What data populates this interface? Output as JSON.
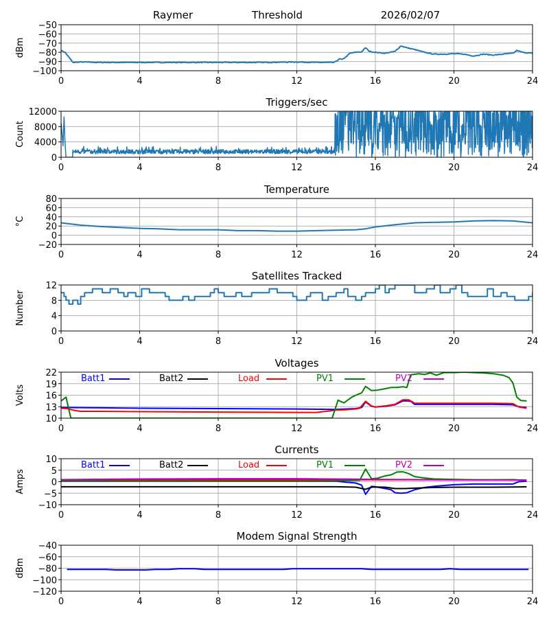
{
  "header": {
    "station": "Raymer",
    "mode": "Threshold",
    "date": "2026/02/07"
  },
  "chart_data": [
    {
      "id": "threshold",
      "type": "line",
      "title": "",
      "ylabel": "dBm",
      "xlim": [
        0,
        24
      ],
      "ylim": [
        -100,
        -50
      ],
      "xticks": [
        0,
        4,
        8,
        12,
        16,
        20,
        24
      ],
      "yticks": [
        -100,
        -90,
        -80,
        -70,
        -60,
        -50
      ],
      "grid": true,
      "series": [
        {
          "name": "Threshold",
          "color": "#1f77b4",
          "x": [
            0,
            0.2,
            0.35,
            0.6,
            1,
            2,
            4,
            6,
            8,
            10,
            12,
            13,
            13.9,
            14.2,
            14.3,
            14.5,
            14.7,
            15,
            15.3,
            15.5,
            15.7,
            16,
            16.5,
            17,
            17.3,
            17.6,
            18,
            18.5,
            19,
            19.5,
            20,
            20.5,
            21,
            21.5,
            22,
            22.5,
            23,
            23.2,
            23.5,
            24
          ],
          "y": [
            -78,
            -80,
            -84,
            -91,
            -90.5,
            -91,
            -91,
            -91,
            -91,
            -91,
            -90.5,
            -91,
            -91,
            -87,
            -88,
            -85,
            -81,
            -80,
            -79.5,
            -75,
            -79,
            -80,
            -81,
            -79,
            -73,
            -75,
            -77,
            -80,
            -82,
            -82,
            -81.5,
            -82,
            -84,
            -82,
            -83,
            -82,
            -81,
            -78,
            -80,
            -81
          ]
        }
      ]
    },
    {
      "id": "triggers",
      "type": "line",
      "title": "Triggers/sec",
      "ylabel": "Count",
      "xlim": [
        0,
        24
      ],
      "ylim": [
        0,
        12000
      ],
      "xticks": [
        0,
        4,
        8,
        12,
        16,
        20,
        24
      ],
      "yticks": [
        0,
        4000,
        8000,
        12000
      ],
      "grid": true,
      "series": [
        {
          "name": "Triggers",
          "color": "#1f77b4",
          "description": "spike ~10500 at x≈0.1-0.2, zero 0.25-0.6, ~1500 with noise (600-2800) from 0.6 to 13.9, then highly variable 0-12000+ from 13.9 to 24",
          "x": [
            0,
            0.1,
            0.15,
            0.2,
            0.25,
            0.6,
            0.7,
            2,
            4,
            6,
            8,
            10,
            12,
            13,
            13.9,
            14.0,
            14.2,
            14.5,
            15,
            15.5,
            16,
            17,
            18,
            19,
            20,
            21,
            22,
            23,
            24
          ],
          "y": [
            9000,
            3000,
            10500,
            4000,
            0,
            0,
            1500,
            1400,
            1500,
            1400,
            1400,
            1500,
            1500,
            1700,
            1300,
            12000,
            1500,
            11000,
            6000,
            12000,
            8000,
            9000,
            6000,
            8000,
            5000,
            4000,
            6000,
            7000,
            9000
          ]
        }
      ]
    },
    {
      "id": "temperature",
      "type": "line",
      "title": "Temperature",
      "ylabel": "°C",
      "xlim": [
        0,
        24
      ],
      "ylim": [
        -20,
        80
      ],
      "xticks": [
        0,
        4,
        8,
        12,
        16,
        20,
        24
      ],
      "yticks": [
        -20,
        0,
        20,
        40,
        60,
        80
      ],
      "grid": true,
      "series": [
        {
          "name": "Temperature",
          "color": "#1f77b4",
          "x": [
            0,
            1,
            2,
            3,
            4,
            5,
            6,
            7,
            8,
            9,
            10,
            11,
            12,
            13,
            14,
            15,
            15.5,
            16,
            17,
            18,
            19,
            20,
            21,
            22,
            23,
            24
          ],
          "y": [
            27,
            22,
            19,
            17,
            15,
            14,
            12,
            12,
            12,
            10,
            10,
            9,
            9,
            10,
            11,
            12,
            14,
            18,
            23,
            27,
            28,
            29,
            31,
            32,
            31,
            27
          ]
        }
      ]
    },
    {
      "id": "satellites",
      "type": "line",
      "title": "Satellites Tracked",
      "ylabel": "Number",
      "xlim": [
        0,
        24
      ],
      "ylim": [
        0,
        12
      ],
      "xticks": [
        0,
        4,
        8,
        12,
        16,
        20,
        24
      ],
      "yticks": [
        0,
        4,
        8,
        12
      ],
      "grid": true,
      "step": true,
      "series": [
        {
          "name": "Satellites",
          "color": "#1f77b4",
          "x": [
            0,
            0.15,
            0.25,
            0.4,
            0.6,
            0.85,
            1.0,
            1.2,
            1.6,
            2.1,
            2.5,
            2.9,
            3.2,
            3.4,
            3.8,
            4.1,
            4.5,
            5.0,
            5.3,
            5.5,
            6.2,
            6.5,
            6.8,
            7.6,
            7.8,
            8.0,
            8.3,
            8.9,
            9.2,
            9.7,
            10.0,
            10.6,
            11.0,
            11.5,
            11.8,
            12.0,
            12.5,
            12.7,
            13.3,
            13.6,
            14.0,
            14.4,
            14.6,
            15.0,
            15.3,
            15.5,
            16.0,
            16.2,
            16.5,
            16.7,
            17.0,
            17.4,
            18.0,
            18.6,
            19.0,
            19.3,
            19.8,
            20.1,
            20.4,
            20.7,
            21.3,
            21.7,
            22.0,
            22.4,
            22.7,
            23.1,
            23.5,
            23.8,
            24
          ],
          "y": [
            10,
            9,
            8,
            7,
            8,
            7,
            9,
            10,
            11,
            10,
            11,
            10,
            9,
            10,
            9,
            11,
            10,
            10,
            9,
            8,
            9,
            8,
            9,
            10,
            11,
            10,
            9,
            10,
            9,
            10,
            10,
            11,
            10,
            10,
            9,
            8,
            9,
            10,
            8,
            9,
            10,
            11,
            9,
            8,
            9,
            10,
            11,
            12,
            10,
            11,
            12,
            12,
            10,
            11,
            12,
            10,
            11,
            12,
            10,
            9,
            9,
            11,
            9,
            10,
            9,
            8,
            8,
            9,
            10
          ]
        }
      ]
    },
    {
      "id": "voltages",
      "type": "line",
      "title": "Voltages",
      "ylabel": "Volts",
      "xlim": [
        0,
        24
      ],
      "ylim": [
        10,
        22
      ],
      "xticks": [
        0,
        4,
        8,
        12,
        16,
        20,
        24
      ],
      "yticks": [
        10,
        13,
        16,
        19,
        22
      ],
      "grid": true,
      "legend": "top (inline row)",
      "series": [
        {
          "name": "Batt1",
          "color": "#0000ff",
          "x": [
            0,
            2,
            4,
            8,
            12,
            14,
            15,
            15.3,
            15.5,
            15.8,
            16,
            16.5,
            17,
            17.4,
            17.6,
            17.8,
            18,
            20,
            22,
            23,
            23.3,
            23.7
          ],
          "y": [
            12.8,
            12.7,
            12.6,
            12.5,
            12.4,
            12.3,
            12.5,
            12.8,
            14.2,
            13.1,
            12.9,
            13.1,
            13.5,
            14.5,
            14.5,
            14.4,
            13.6,
            13.6,
            13.6,
            13.5,
            13.0,
            12.8
          ]
        },
        {
          "name": "Batt2",
          "color": "#000000",
          "x": [],
          "y": []
        },
        {
          "name": "Load",
          "color": "#ff0000",
          "x": [
            0,
            0.3,
            0.7,
            1,
            2,
            4,
            8,
            12,
            13,
            13.5,
            14,
            14.5,
            15,
            15.2,
            15.5,
            15.8,
            16,
            16.5,
            17,
            17.4,
            17.7,
            18,
            20,
            22,
            23,
            23.3,
            23.7
          ],
          "y": [
            12.6,
            12.5,
            12.0,
            11.8,
            11.8,
            11.7,
            11.6,
            11.5,
            11.5,
            11.8,
            12.1,
            12.2,
            12.4,
            12.6,
            14.4,
            13.2,
            12.9,
            13.2,
            13.6,
            14.8,
            14.8,
            13.9,
            13.9,
            13.9,
            13.8,
            12.9,
            12.6
          ]
        },
        {
          "name": "PV1",
          "color": "#008000",
          "x": [
            0,
            0.25,
            0.5,
            13.8,
            14.1,
            14.4,
            14.8,
            15.1,
            15.3,
            15.5,
            15.8,
            16.1,
            16.4,
            16.8,
            17.1,
            17.4,
            17.6,
            17.8,
            18.2,
            18.5,
            18.8,
            19.1,
            19.5,
            20,
            20.5,
            21,
            21.5,
            22,
            22.5,
            22.8,
            23.0,
            23.2,
            23.4,
            23.7
          ],
          "y": [
            14.5,
            15.5,
            10,
            10,
            14.7,
            14.0,
            15.5,
            16.2,
            16.6,
            18.3,
            17.2,
            17.3,
            17.6,
            18.0,
            18.0,
            18.2,
            18.0,
            21.3,
            21.6,
            21.4,
            21.8,
            21.2,
            21.9,
            21.9,
            22.0,
            21.9,
            21.8,
            21.6,
            21.2,
            20.6,
            19.2,
            15.5,
            14.6,
            14.5
          ]
        },
        {
          "name": "PV2",
          "color": "#bf00bf",
          "x": [],
          "y": []
        }
      ]
    },
    {
      "id": "currents",
      "type": "line",
      "title": "Currents",
      "ylabel": "Amps",
      "xlim": [
        0,
        24
      ],
      "ylim": [
        -10,
        10
      ],
      "xticks": [
        0,
        4,
        8,
        12,
        16,
        20,
        24
      ],
      "yticks": [
        -10,
        -5,
        0,
        5,
        10
      ],
      "grid": true,
      "legend": "top (inline row)",
      "series": [
        {
          "name": "Batt1",
          "color": "#0000ff",
          "x": [
            0,
            4,
            8,
            12,
            14,
            14.5,
            15,
            15.3,
            15.5,
            15.8,
            16,
            16.5,
            16.8,
            17,
            17.3,
            17.6,
            18,
            18.5,
            19,
            20,
            21,
            22,
            23,
            23.3,
            23.7
          ],
          "y": [
            0.2,
            0.2,
            0.2,
            0.2,
            0.2,
            -0.2,
            -0.6,
            -1.5,
            -5.5,
            -2.0,
            -2.2,
            -3.0,
            -3.5,
            -4.8,
            -5.0,
            -4.8,
            -3.5,
            -2.5,
            -2.0,
            -1.3,
            -1.0,
            -1.0,
            -1.0,
            0.0,
            0.2
          ]
        },
        {
          "name": "Batt2",
          "color": "#000000",
          "x": [
            0,
            4,
            8,
            12,
            14,
            15,
            15.5,
            15.8,
            16,
            16.5,
            17,
            17.5,
            18,
            19,
            20,
            22,
            23,
            23.7
          ],
          "y": [
            -2.2,
            -2.2,
            -2.2,
            -2.2,
            -2.2,
            -2.4,
            -3.3,
            -2.4,
            -2.3,
            -2.4,
            -3.0,
            -3.0,
            -2.8,
            -2.5,
            -2.4,
            -2.4,
            -2.3,
            -2.2
          ]
        },
        {
          "name": "Load",
          "color": "#ff0000",
          "x": [
            0,
            4,
            8,
            12,
            16,
            20,
            23.7
          ],
          "y": [
            0.7,
            0.8,
            0.9,
            0.9,
            0.8,
            0.8,
            0.7
          ]
        },
        {
          "name": "PV1",
          "color": "#008000",
          "x": [
            0,
            4,
            8,
            12,
            14,
            15.2,
            15.5,
            15.8,
            16.1,
            16.5,
            16.8,
            17.1,
            17.4,
            17.7,
            18,
            18.5,
            19,
            20,
            21,
            22,
            23,
            23.7
          ],
          "y": [
            0.3,
            0.3,
            0.3,
            0.3,
            0.4,
            0.6,
            5.5,
            1.3,
            1.5,
            2.5,
            3.0,
            4.2,
            4.3,
            3.5,
            2.2,
            1.6,
            1.2,
            1.0,
            0.8,
            0.8,
            0.9,
            0.6
          ]
        },
        {
          "name": "PV2",
          "color": "#bf00bf",
          "x": [
            0,
            4,
            8,
            12,
            16,
            20,
            23.7
          ],
          "y": [
            0.9,
            1.2,
            1.3,
            1.3,
            1.0,
            0.8,
            0.7
          ]
        }
      ]
    },
    {
      "id": "modem",
      "type": "line",
      "title": "Modem Signal Strength",
      "ylabel": "dBm",
      "xlim": [
        0,
        24
      ],
      "ylim": [
        -120,
        -40
      ],
      "xticks": [
        0,
        4,
        8,
        12,
        16,
        20,
        24
      ],
      "yticks": [
        -120,
        -100,
        -80,
        -60,
        -40
      ],
      "grid": true,
      "series": [
        {
          "name": "Modem",
          "color": "#0000ff",
          "x": [
            0.3,
            2.3,
            2.8,
            4.3,
            4.8,
            5.5,
            6.0,
            6.8,
            7.3,
            8,
            11.3,
            11.8,
            15.3,
            15.8,
            19.3,
            19.8,
            20.3,
            23.8
          ],
          "y": [
            -82,
            -82,
            -83,
            -83,
            -82,
            -82,
            -81,
            -81,
            -82,
            -82,
            -82,
            -81,
            -81,
            -82,
            -82,
            -81,
            -82,
            -82
          ]
        }
      ]
    }
  ]
}
